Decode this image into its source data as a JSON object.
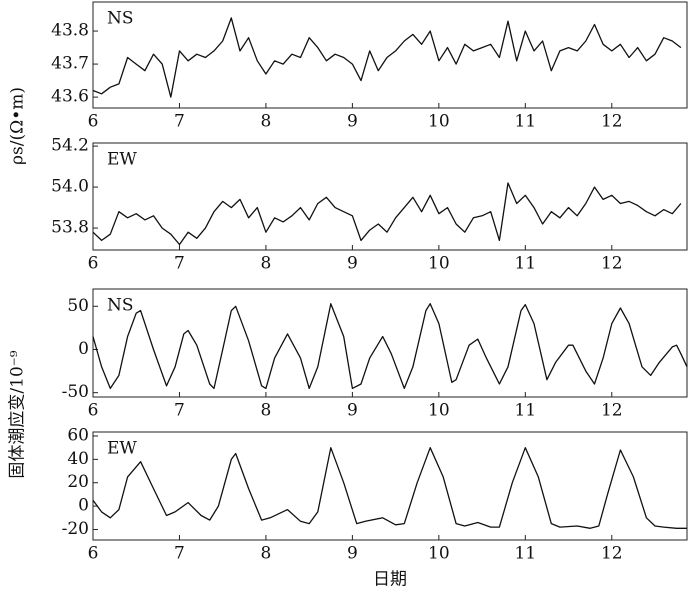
{
  "chart_data": [
    {
      "type": "line",
      "annotation": "NS",
      "ylabel": "ρs/(Ω•m)",
      "xlim": [
        6,
        12.87
      ],
      "xticks": [
        6,
        7,
        8,
        9,
        10,
        11,
        12
      ],
      "ylim": [
        43.567,
        43.888
      ],
      "yticks": [
        43.6,
        43.7,
        43.8
      ],
      "color": "#111111",
      "x": [
        6.0,
        6.1,
        6.2,
        6.3,
        6.4,
        6.5,
        6.6,
        6.7,
        6.8,
        6.9,
        7.0,
        7.1,
        7.2,
        7.3,
        7.4,
        7.5,
        7.6,
        7.7,
        7.8,
        7.9,
        8.0,
        8.1,
        8.2,
        8.3,
        8.4,
        8.5,
        8.6,
        8.7,
        8.8,
        8.9,
        9.0,
        9.1,
        9.2,
        9.3,
        9.4,
        9.5,
        9.6,
        9.7,
        9.8,
        9.9,
        10.0,
        10.1,
        10.2,
        10.3,
        10.4,
        10.5,
        10.6,
        10.7,
        10.8,
        10.9,
        11.0,
        11.1,
        11.2,
        11.3,
        11.4,
        11.5,
        11.6,
        11.7,
        11.8,
        11.9,
        12.0,
        12.1,
        12.2,
        12.3,
        12.4,
        12.5,
        12.6,
        12.7,
        12.8
      ],
      "values": [
        43.62,
        43.61,
        43.63,
        43.64,
        43.72,
        43.7,
        43.68,
        43.73,
        43.7,
        43.6,
        43.74,
        43.71,
        43.73,
        43.72,
        43.74,
        43.77,
        43.84,
        43.74,
        43.78,
        43.71,
        43.67,
        43.71,
        43.7,
        43.73,
        43.72,
        43.78,
        43.75,
        43.71,
        43.73,
        43.72,
        43.7,
        43.65,
        43.74,
        43.68,
        43.72,
        43.74,
        43.77,
        43.79,
        43.76,
        43.8,
        43.71,
        43.75,
        43.7,
        43.76,
        43.74,
        43.75,
        43.76,
        43.72,
        43.83,
        43.71,
        43.8,
        43.74,
        43.77,
        43.68,
        43.74,
        43.75,
        43.74,
        43.77,
        43.82,
        43.76,
        43.74,
        43.76,
        43.72,
        43.75,
        43.71,
        43.73,
        43.78,
        43.77,
        43.75
      ]
    },
    {
      "type": "line",
      "annotation": "EW",
      "xlim": [
        6,
        12.87
      ],
      "xticks": [
        6,
        7,
        8,
        9,
        10,
        11,
        12
      ],
      "ylim": [
        53.693,
        54.215
      ],
      "yticks": [
        53.8,
        {
          "value": 54.0,
          "label": "54.0"
        },
        54.2
      ],
      "color": "#111111",
      "x": [
        6.0,
        6.1,
        6.2,
        6.3,
        6.4,
        6.5,
        6.6,
        6.7,
        6.8,
        6.9,
        7.0,
        7.1,
        7.2,
        7.3,
        7.4,
        7.5,
        7.6,
        7.7,
        7.8,
        7.9,
        8.0,
        8.1,
        8.2,
        8.3,
        8.4,
        8.5,
        8.6,
        8.7,
        8.8,
        8.9,
        9.0,
        9.1,
        9.2,
        9.3,
        9.4,
        9.5,
        9.6,
        9.7,
        9.8,
        9.9,
        10.0,
        10.1,
        10.2,
        10.3,
        10.4,
        10.5,
        10.6,
        10.7,
        10.8,
        10.9,
        11.0,
        11.1,
        11.2,
        11.3,
        11.4,
        11.5,
        11.6,
        11.7,
        11.8,
        11.9,
        12.0,
        12.1,
        12.2,
        12.3,
        12.4,
        12.5,
        12.6,
        12.7,
        12.8
      ],
      "values": [
        53.78,
        53.74,
        53.77,
        53.88,
        53.85,
        53.87,
        53.84,
        53.86,
        53.8,
        53.77,
        53.72,
        53.78,
        53.75,
        53.8,
        53.88,
        53.93,
        53.9,
        53.94,
        53.85,
        53.9,
        53.78,
        53.85,
        53.83,
        53.86,
        53.9,
        53.84,
        53.92,
        53.95,
        53.9,
        53.88,
        53.86,
        53.74,
        53.79,
        53.82,
        53.78,
        53.85,
        53.9,
        53.95,
        53.88,
        53.96,
        53.87,
        53.9,
        53.82,
        53.78,
        53.85,
        53.86,
        53.88,
        53.74,
        54.02,
        53.92,
        53.96,
        53.9,
        53.82,
        53.88,
        53.85,
        53.9,
        53.86,
        53.92,
        54.0,
        53.94,
        53.96,
        53.92,
        53.93,
        53.91,
        53.88,
        53.86,
        53.89,
        53.87,
        53.92
      ]
    },
    {
      "type": "line",
      "annotation": "NS",
      "ylabel": "固体潮应变/10⁻⁹",
      "xlim": [
        6,
        12.87
      ],
      "xticks": [
        6,
        7,
        8,
        9,
        10,
        11,
        12
      ],
      "ylim": [
        -55,
        70
      ],
      "yticks": [
        -50,
        0,
        50
      ],
      "color": "#111111",
      "x": [
        6.0,
        6.1,
        6.2,
        6.3,
        6.4,
        6.5,
        6.55,
        6.7,
        6.85,
        6.95,
        7.05,
        7.1,
        7.2,
        7.35,
        7.4,
        7.5,
        7.6,
        7.65,
        7.8,
        7.95,
        8.0,
        8.1,
        8.25,
        8.4,
        8.5,
        8.6,
        8.75,
        8.9,
        9.0,
        9.1,
        9.2,
        9.35,
        9.45,
        9.6,
        9.7,
        9.85,
        9.9,
        10.0,
        10.15,
        10.2,
        10.35,
        10.45,
        10.55,
        10.7,
        10.8,
        10.95,
        11.0,
        11.1,
        11.25,
        11.35,
        11.5,
        11.55,
        11.7,
        11.8,
        11.9,
        12.0,
        12.1,
        12.2,
        12.35,
        12.45,
        12.55,
        12.7,
        12.75,
        12.8,
        12.87
      ],
      "values": [
        15,
        -20,
        -45,
        -30,
        15,
        42,
        45,
        0,
        -42,
        -20,
        18,
        22,
        5,
        -40,
        -45,
        0,
        45,
        50,
        10,
        -42,
        -45,
        -10,
        18,
        -10,
        -45,
        -20,
        53,
        15,
        -45,
        -40,
        -10,
        15,
        -5,
        -45,
        -20,
        45,
        53,
        30,
        -38,
        -35,
        5,
        12,
        -10,
        -40,
        -20,
        45,
        52,
        30,
        -35,
        -15,
        5,
        5,
        -25,
        -40,
        -10,
        30,
        48,
        30,
        -20,
        -30,
        -15,
        3,
        5,
        -5,
        -20
      ]
    },
    {
      "type": "line",
      "annotation": "EW",
      "xlabel": "日期",
      "xlim": [
        6,
        12.87
      ],
      "xticks": [
        6,
        7,
        8,
        9,
        10,
        11,
        12
      ],
      "ylim": [
        -29,
        63.4
      ],
      "yticks": [
        -20,
        0,
        20,
        40,
        60
      ],
      "color": "#111111",
      "x": [
        6.0,
        6.1,
        6.2,
        6.3,
        6.4,
        6.55,
        6.7,
        6.85,
        6.95,
        7.1,
        7.25,
        7.35,
        7.45,
        7.6,
        7.65,
        7.8,
        7.95,
        8.05,
        8.25,
        8.4,
        8.5,
        8.6,
        8.75,
        8.9,
        9.05,
        9.15,
        9.35,
        9.5,
        9.6,
        9.75,
        9.9,
        10.05,
        10.2,
        10.3,
        10.45,
        10.6,
        10.7,
        10.85,
        11.0,
        11.15,
        11.3,
        11.4,
        11.6,
        11.75,
        11.85,
        11.95,
        12.1,
        12.25,
        12.4,
        12.5,
        12.6,
        12.75,
        12.87
      ],
      "values": [
        5,
        -5,
        -10,
        -3,
        25,
        38,
        15,
        -8,
        -5,
        3,
        -8,
        -12,
        0,
        40,
        45,
        15,
        -12,
        -10,
        -3,
        -13,
        -15,
        -5,
        50,
        20,
        -15,
        -13,
        -10,
        -16,
        -15,
        20,
        50,
        25,
        -15,
        -17,
        -14,
        -18,
        -18,
        20,
        50,
        25,
        -15,
        -18,
        -17,
        -19,
        -17,
        10,
        48,
        25,
        -10,
        -17,
        -18,
        -19,
        -19
      ]
    }
  ]
}
